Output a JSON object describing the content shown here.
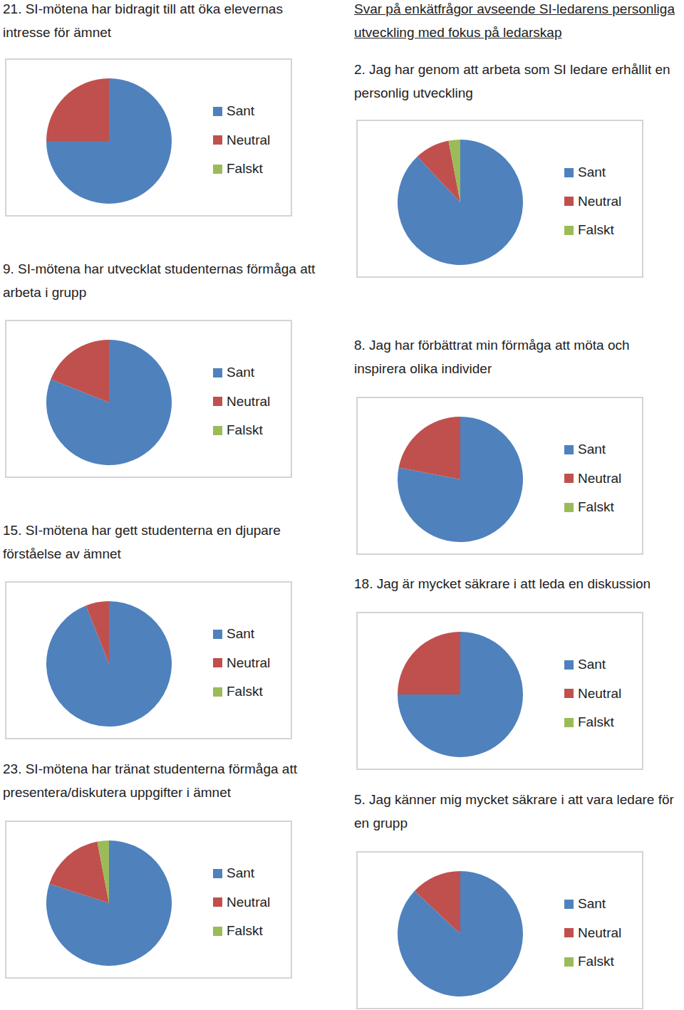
{
  "heading": "Svar på enkätfrågor avseende SI-ledarens personliga utveckling med fokus på ledarskap",
  "chart_data": [
    {
      "type": "pie",
      "title": "21. SI-mötena har bidragit till att öka elevernas intresse för ämnet",
      "categories": [
        "Sant",
        "Neutral",
        "Falskt"
      ],
      "values": [
        75,
        25,
        0
      ],
      "colors": [
        "#4f81bd",
        "#c0504d",
        "#9bbb59"
      ],
      "legend": "right"
    },
    {
      "type": "pie",
      "title": "9. SI-mötena har utvecklat studenternas förmåga att arbeta i grupp",
      "categories": [
        "Sant",
        "Neutral",
        "Falskt"
      ],
      "values": [
        81,
        19,
        0
      ],
      "colors": [
        "#4f81bd",
        "#c0504d",
        "#9bbb59"
      ],
      "legend": "right"
    },
    {
      "type": "pie",
      "title": "15. SI-mötena har gett studenterna en djupare förståelse av ämnet",
      "categories": [
        "Sant",
        "Neutral",
        "Falskt"
      ],
      "values": [
        94,
        6,
        0
      ],
      "colors": [
        "#4f81bd",
        "#c0504d",
        "#9bbb59"
      ],
      "legend": "right"
    },
    {
      "type": "pie",
      "title": "23. SI-mötena har tränat studenterna förmåga att presentera/diskutera uppgifter i ämnet",
      "categories": [
        "Sant",
        "Neutral",
        "Falskt"
      ],
      "values": [
        80,
        17,
        3
      ],
      "colors": [
        "#4f81bd",
        "#c0504d",
        "#9bbb59"
      ],
      "legend": "right"
    },
    {
      "type": "pie",
      "title": "2. Jag har genom att arbeta som SI ledare erhållit en personlig utveckling",
      "categories": [
        "Sant",
        "Neutral",
        "Falskt"
      ],
      "values": [
        88,
        9,
        3
      ],
      "colors": [
        "#4f81bd",
        "#c0504d",
        "#9bbb59"
      ],
      "legend": "right"
    },
    {
      "type": "pie",
      "title": "8. Jag har förbättrat min förmåga att möta och inspirera olika individer",
      "categories": [
        "Sant",
        "Neutral",
        "Falskt"
      ],
      "values": [
        78,
        22,
        0
      ],
      "colors": [
        "#4f81bd",
        "#c0504d",
        "#9bbb59"
      ],
      "legend": "right"
    },
    {
      "type": "pie",
      "title": "18. Jag är mycket säkrare i att leda en diskussion",
      "categories": [
        "Sant",
        "Neutral",
        "Falskt"
      ],
      "values": [
        75,
        25,
        0
      ],
      "colors": [
        "#4f81bd",
        "#c0504d",
        "#9bbb59"
      ],
      "legend": "right"
    },
    {
      "type": "pie",
      "title": "5. Jag känner mig mycket säkrare i att vara ledare för en grupp",
      "categories": [
        "Sant",
        "Neutral",
        "Falskt"
      ],
      "values": [
        87,
        13,
        0
      ],
      "colors": [
        "#4f81bd",
        "#c0504d",
        "#9bbb59"
      ],
      "legend": "right"
    }
  ]
}
